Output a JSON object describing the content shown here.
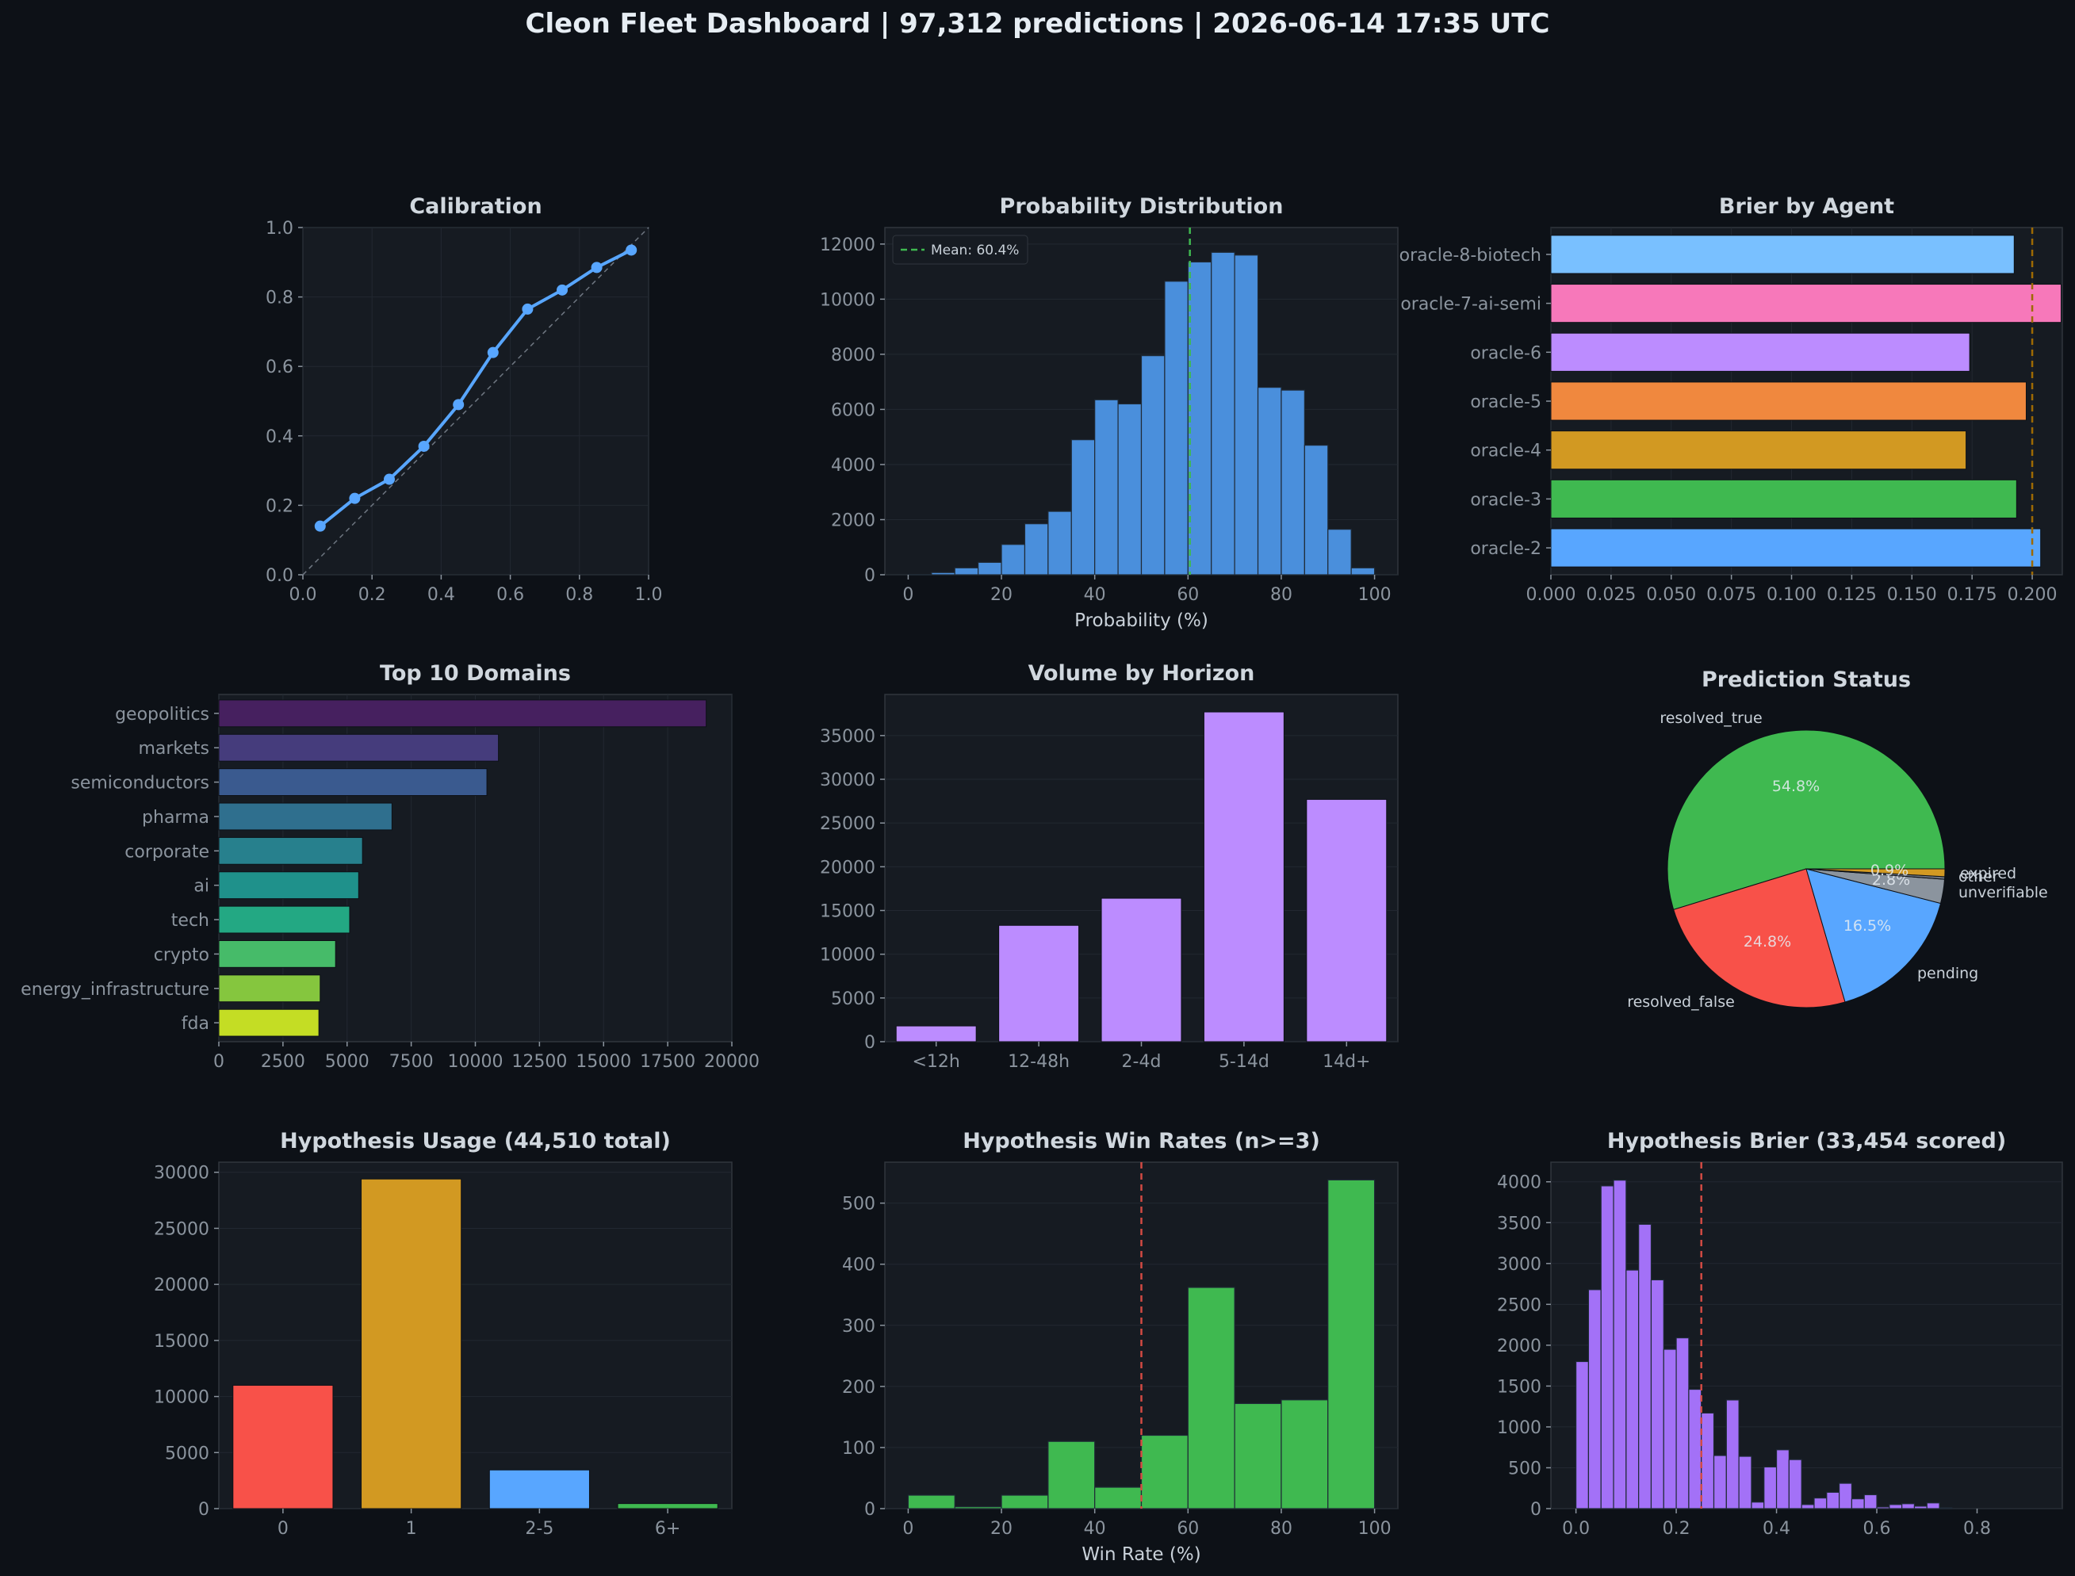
{
  "title": "Cleon Fleet Dashboard  |  97,312 predictions  |  2026-06-14 17:35 UTC",
  "colors": {
    "background": "#0d1117",
    "panel": "#161b22",
    "text": "#c9d1d9",
    "muted": "#8b949e",
    "blue": "#58a6ff",
    "green": "#3fb950",
    "red": "#f85149",
    "purple": "#bc8cff",
    "gold": "#d29922"
  },
  "chart_data": [
    {
      "id": "calibration",
      "type": "line",
      "title": "Calibration",
      "xlabel": "",
      "ylabel": "",
      "xlim": [
        0,
        1
      ],
      "ylim": [
        0,
        1
      ],
      "xticks": [
        "0.0",
        "0.2",
        "0.4",
        "0.6",
        "0.8",
        "1.0"
      ],
      "yticks": [
        "0.0",
        "0.2",
        "0.4",
        "0.6",
        "0.8",
        "1.0"
      ],
      "x": [
        0.05,
        0.15,
        0.25,
        0.35,
        0.45,
        0.55,
        0.65,
        0.75,
        0.85,
        0.95
      ],
      "y": [
        0.14,
        0.22,
        0.275,
        0.37,
        0.49,
        0.64,
        0.765,
        0.82,
        0.885,
        0.935
      ],
      "reference_line": "diagonal",
      "grid": true,
      "color": "#58a6ff"
    },
    {
      "id": "probability-distribution",
      "type": "bar",
      "title": "Probability Distribution",
      "xlabel": "Probability (%)",
      "ylabel": "",
      "xlim": [
        -5,
        105
      ],
      "ylim": [
        0,
        12600
      ],
      "xticks": [
        "0",
        "20",
        "40",
        "60",
        "80",
        "100"
      ],
      "yticks": [
        "0",
        "2000",
        "4000",
        "6000",
        "8000",
        "10000",
        "12000"
      ],
      "bin_start": 0,
      "bin_width": 5,
      "values": [
        5,
        80,
        250,
        450,
        1100,
        1850,
        2300,
        4900,
        6350,
        6200,
        7950,
        10650,
        11350,
        11700,
        11600,
        6800,
        6700,
        4700,
        1650,
        250
      ],
      "mean_line": 60.4,
      "legend": "Mean: 60.4%",
      "legend_position": "top-left",
      "color": "#4a8fdc"
    },
    {
      "id": "brier-by-agent",
      "type": "bar",
      "orientation": "horizontal",
      "title": "Brier by Agent",
      "xlabel": "",
      "ylabel": "",
      "xlim": [
        0,
        0.2125
      ],
      "xticks": [
        "0.000",
        "0.025",
        "0.050",
        "0.075",
        "0.100",
        "0.125",
        "0.150",
        "0.175",
        "0.200"
      ],
      "categories": [
        "oracle-2",
        "oracle-3",
        "oracle-4",
        "oracle-5",
        "oracle-6",
        "oracle-7-ai-semi",
        "oracle-8-biotech"
      ],
      "values": [
        0.2035,
        0.1935,
        0.1725,
        0.1975,
        0.174,
        0.212,
        0.1925
      ],
      "bar_colors": [
        "#58a6ff",
        "#3fb950",
        "#d29922",
        "#f0883e",
        "#bc8cff",
        "#f778ba",
        "#79c0ff"
      ],
      "reference_line": 0.2
    },
    {
      "id": "top-domains",
      "type": "bar",
      "orientation": "horizontal",
      "title": "Top 10 Domains",
      "xlabel": "",
      "ylabel": "",
      "xlim": [
        0,
        20000
      ],
      "xticks": [
        "0",
        "2500",
        "5000",
        "7500",
        "10000",
        "12500",
        "15000",
        "17500",
        "20000"
      ],
      "categories": [
        "geopolitics",
        "markets",
        "semiconductors",
        "pharma",
        "corporate",
        "ai",
        "tech",
        "crypto",
        "energy_infrastructure",
        "fda"
      ],
      "values": [
        19000,
        10900,
        10450,
        6750,
        5600,
        5450,
        5100,
        4550,
        3950,
        3900
      ],
      "bar_colors": [
        "#46205f",
        "#453c7c",
        "#3a5a8f",
        "#2f6f8e",
        "#27808d",
        "#1f918b",
        "#23a883",
        "#46bb69",
        "#85c63e",
        "#c4dd24"
      ]
    },
    {
      "id": "volume-by-horizon",
      "type": "bar",
      "title": "Volume by Horizon",
      "xlabel": "",
      "ylabel": "",
      "ylim": [
        0,
        39700
      ],
      "yticks": [
        "0",
        "5000",
        "10000",
        "15000",
        "20000",
        "25000",
        "30000",
        "35000"
      ],
      "categories": [
        "<12h",
        "12-48h",
        "2-4d",
        "5-14d",
        "14d+"
      ],
      "values": [
        1800,
        13300,
        16400,
        37700,
        27700
      ],
      "color": "#bc8cff"
    },
    {
      "id": "prediction-status",
      "type": "pie",
      "title": "Prediction Status",
      "labels": [
        "resolved_true",
        "resolved_false",
        "pending",
        "unverifiable",
        "other",
        "expired"
      ],
      "values": [
        54.8,
        24.8,
        16.5,
        2.8,
        0.3,
        0.9
      ],
      "value_labels": [
        "54.8%",
        "24.8%",
        "16.5%",
        "2.8%",
        "",
        "0.9%"
      ],
      "slice_colors": [
        "#3fb950",
        "#f85149",
        "#58a6ff",
        "#8b949e",
        "#6e7681",
        "#d29922"
      ]
    },
    {
      "id": "hypothesis-usage",
      "type": "bar",
      "title": "Hypothesis Usage (44,510 total)",
      "xlabel": "",
      "ylabel": "",
      "ylim": [
        0,
        30900
      ],
      "yticks": [
        "0",
        "5000",
        "10000",
        "15000",
        "20000",
        "25000",
        "30000"
      ],
      "categories": [
        "0",
        "1",
        "2-5",
        "6+"
      ],
      "values": [
        11000,
        29400,
        3450,
        450
      ],
      "bar_colors": [
        "#f85149",
        "#d29922",
        "#58a6ff",
        "#3fb950"
      ]
    },
    {
      "id": "hypothesis-win-rates",
      "type": "bar",
      "title": "Hypothesis Win Rates (n>=3)",
      "xlabel": "Win Rate (%)",
      "ylabel": "",
      "xlim": [
        -5,
        105
      ],
      "ylim": [
        0,
        567
      ],
      "xticks": [
        "0",
        "20",
        "40",
        "60",
        "80",
        "100"
      ],
      "yticks": [
        "0",
        "100",
        "200",
        "300",
        "400",
        "500"
      ],
      "bin_start": 0,
      "bin_width": 10,
      "values": [
        22,
        3,
        22,
        110,
        35,
        120,
        362,
        172,
        178,
        538
      ],
      "reference_line": 50,
      "color": "#3fb950"
    },
    {
      "id": "hypothesis-brier",
      "type": "bar",
      "title": "Hypothesis Brier (33,454 scored)",
      "xlabel": "",
      "ylabel": "",
      "xlim": [
        -0.05,
        0.97
      ],
      "ylim": [
        0,
        4240
      ],
      "xticks": [
        "0.0",
        "0.2",
        "0.4",
        "0.6",
        "0.8"
      ],
      "yticks": [
        "0",
        "500",
        "1000",
        "1500",
        "2000",
        "2500",
        "3000",
        "3500",
        "4000"
      ],
      "bin_start": 0,
      "bin_width": 0.025,
      "values": [
        1800,
        2680,
        3950,
        4020,
        2920,
        3480,
        2800,
        1950,
        2090,
        1460,
        1170,
        650,
        1330,
        640,
        80,
        510,
        720,
        600,
        50,
        130,
        200,
        310,
        120,
        170,
        20,
        50,
        60,
        30,
        70,
        10
      ],
      "reference_line": 0.25,
      "color": "#a371f7"
    }
  ]
}
